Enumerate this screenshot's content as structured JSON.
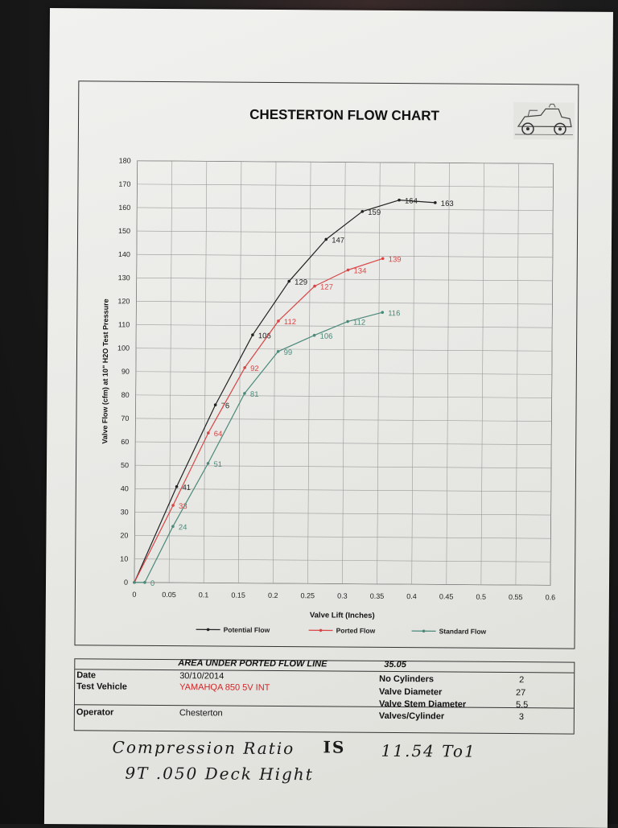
{
  "sheet": {
    "title": "CHESTERTON FLOW CHART"
  },
  "chart_data": {
    "type": "line",
    "title": "CHESTERTON FLOW CHART",
    "xlabel": "Valve Lift (Inches)",
    "ylabel": "Valve Flow (cfm) at 10\" H2O Test Pressure",
    "xlim": [
      0,
      0.6
    ],
    "ylim": [
      0,
      180
    ],
    "x_ticks": [
      "0",
      "0.05",
      "0.1",
      "0.15",
      "0.2",
      "0.25",
      "0.3",
      "0.35",
      "0.4",
      "0.45",
      "0.5",
      "0.55",
      "0.6"
    ],
    "y_ticks": [
      "0",
      "10",
      "20",
      "30",
      "40",
      "50",
      "60",
      "70",
      "80",
      "90",
      "100",
      "110",
      "120",
      "130",
      "140",
      "150",
      "160",
      "170",
      "180"
    ],
    "grid": true,
    "legend_position": "bottom",
    "series": [
      {
        "name": "Potential Flow",
        "color": "#222222",
        "x": [
          0,
          0.06,
          0.115,
          0.168,
          0.22,
          0.273,
          0.325,
          0.378,
          0.43
        ],
        "y": [
          0,
          41,
          76,
          106,
          129,
          147,
          159,
          164,
          163
        ],
        "labels": [
          "",
          "41",
          "76",
          "106",
          "129",
          "147",
          "159",
          "164",
          "163"
        ]
      },
      {
        "name": "Ported Flow",
        "color": "#d94545",
        "x": [
          0,
          0.055,
          0.105,
          0.157,
          0.205,
          0.257,
          0.305,
          0.355
        ],
        "y": [
          0,
          33,
          64,
          92,
          112,
          127,
          134,
          139
        ],
        "labels": [
          "",
          "33",
          "64",
          "92",
          "112",
          "127",
          "134",
          "139"
        ]
      },
      {
        "name": "Standard Flow",
        "color": "#4a8a7a",
        "x": [
          0,
          0.015,
          0.055,
          0.105,
          0.157,
          0.205,
          0.257,
          0.305,
          0.355
        ],
        "y": [
          0,
          0,
          24,
          51,
          81,
          99,
          106,
          112,
          116
        ],
        "labels": [
          "",
          "0",
          "24",
          "51",
          "81",
          "99",
          "106",
          "112",
          "116"
        ]
      }
    ]
  },
  "info": {
    "area_label": "AREA UNDER PORTED FLOW LINE",
    "area_value": "35.05",
    "date_label": "Date",
    "date_value": "30/10/2014",
    "vehicle_label": "Test Vehicle",
    "vehicle_value": "YAMAHQA 850 5V INT",
    "operator_label": "Operator",
    "operator_value": "Chesterton",
    "cylinders_label": "No Cylinders",
    "cylinders_value": "2",
    "valve_diameter_label": "Valve Diameter",
    "valve_diameter_value": "27",
    "stem_diameter_label": "Valve Stem Diameter",
    "stem_diameter_value": "5.5",
    "valves_per_cyl_label": "Valves/Cylinder",
    "valves_per_cyl_value": "3"
  },
  "handwriting": {
    "line1_part1": "Compression Ratio",
    "line1_part2": "IS",
    "line1_part3": "11.54 To1",
    "line2": "9T .050  Deck Hight"
  },
  "colors": {
    "potential": "#222222",
    "ported": "#d94545",
    "standard": "#4a8a7a",
    "ink_red": "#d02626"
  }
}
